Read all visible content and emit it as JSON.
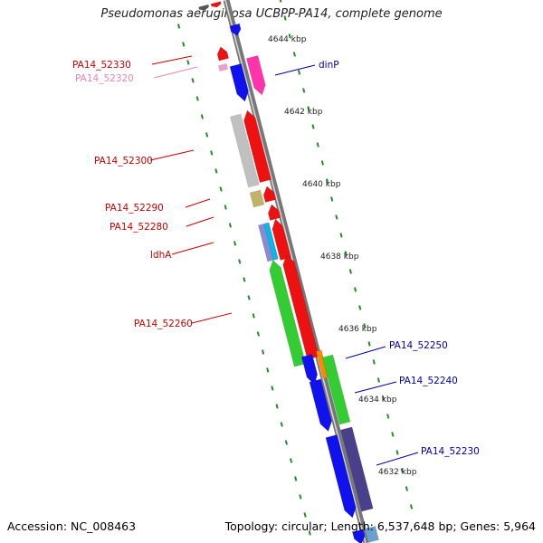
{
  "title": "Pseudomonas aeruginosa UCBPP-PA14, complete genome",
  "footer": {
    "accession": "Accession: NC_008463",
    "summary": "Topology: circular; Length: 6,537,648 bp; Genes: 5,964"
  },
  "colors": {
    "backbone": "#777777",
    "tick": "#2a8a2a",
    "label_red": "#cc0000",
    "label_pink": "#e888b0",
    "label_blue": "#0000aa",
    "red": "#ee1111",
    "pink": "#ff33aa",
    "blue": "#1111ee",
    "green": "#33cc33",
    "gray": "#c0c0c0",
    "olive": "#bfb36a",
    "navy": "#4a3f8a",
    "orange": "#ff8800",
    "cyan": "#00bbee"
  },
  "scale_labels": [
    "4644 kbp",
    "4642 kbp",
    "4640 kbp",
    "4638 kbp",
    "4636 kbp",
    "4634 kbp",
    "4632 kbp"
  ],
  "gene_labels_left": [
    "PA14_52330",
    "PA14_52320",
    "PA14_52300",
    "PA14_52290",
    "PA14_52280",
    "ldhA",
    "PA14_52260"
  ],
  "gene_labels_right": [
    "dinP",
    "PA14_52250",
    "PA14_52240",
    "PA14_52230"
  ]
}
